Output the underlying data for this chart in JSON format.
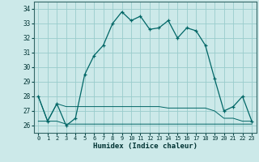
{
  "title": "",
  "xlabel": "Humidex (Indice chaleur)",
  "ylabel": "",
  "bg_color": "#cce9e9",
  "grid_color": "#99cccc",
  "line_color": "#006666",
  "ylim": [
    25.5,
    34.5
  ],
  "xlim": [
    -0.5,
    23.5
  ],
  "yticks": [
    26,
    27,
    28,
    29,
    30,
    31,
    32,
    33,
    34
  ],
  "xticks": [
    0,
    1,
    2,
    3,
    4,
    5,
    6,
    7,
    8,
    9,
    10,
    11,
    12,
    13,
    14,
    15,
    16,
    17,
    18,
    19,
    20,
    21,
    22,
    23
  ],
  "series1_x": [
    0,
    1,
    2,
    3,
    4,
    5,
    6,
    7,
    8,
    9,
    10,
    11,
    12,
    13,
    14,
    15,
    16,
    17,
    18,
    19,
    20,
    21,
    22,
    23
  ],
  "series1_y": [
    28.0,
    26.3,
    27.5,
    26.0,
    26.5,
    29.5,
    30.8,
    31.5,
    33.0,
    33.8,
    33.2,
    33.5,
    32.6,
    32.7,
    33.2,
    32.0,
    32.7,
    32.5,
    31.5,
    29.2,
    27.0,
    27.3,
    28.0,
    26.3
  ],
  "series2_x": [
    0,
    1,
    2,
    3,
    4,
    5,
    6,
    7,
    8,
    9,
    10,
    11,
    12,
    13,
    14,
    15,
    16,
    17,
    18,
    19,
    20,
    21,
    22,
    23
  ],
  "series2_y": [
    28.0,
    26.3,
    27.5,
    27.3,
    27.3,
    27.3,
    27.3,
    27.3,
    27.3,
    27.3,
    27.3,
    27.3,
    27.3,
    27.3,
    27.2,
    27.2,
    27.2,
    27.2,
    27.2,
    27.0,
    26.5,
    26.5,
    26.3,
    26.3
  ],
  "series3_x": [
    0,
    1,
    2,
    3,
    4,
    5,
    6,
    7,
    8,
    9,
    10,
    11,
    12,
    13,
    14,
    15,
    16,
    17,
    18,
    19,
    20,
    21,
    22,
    23
  ],
  "series3_y": [
    26.3,
    26.3,
    26.3,
    26.1,
    26.1,
    26.1,
    26.1,
    26.1,
    26.1,
    26.1,
    26.1,
    26.1,
    26.1,
    26.1,
    26.1,
    26.1,
    26.1,
    26.1,
    26.1,
    26.1,
    26.1,
    26.1,
    26.1,
    26.1
  ]
}
